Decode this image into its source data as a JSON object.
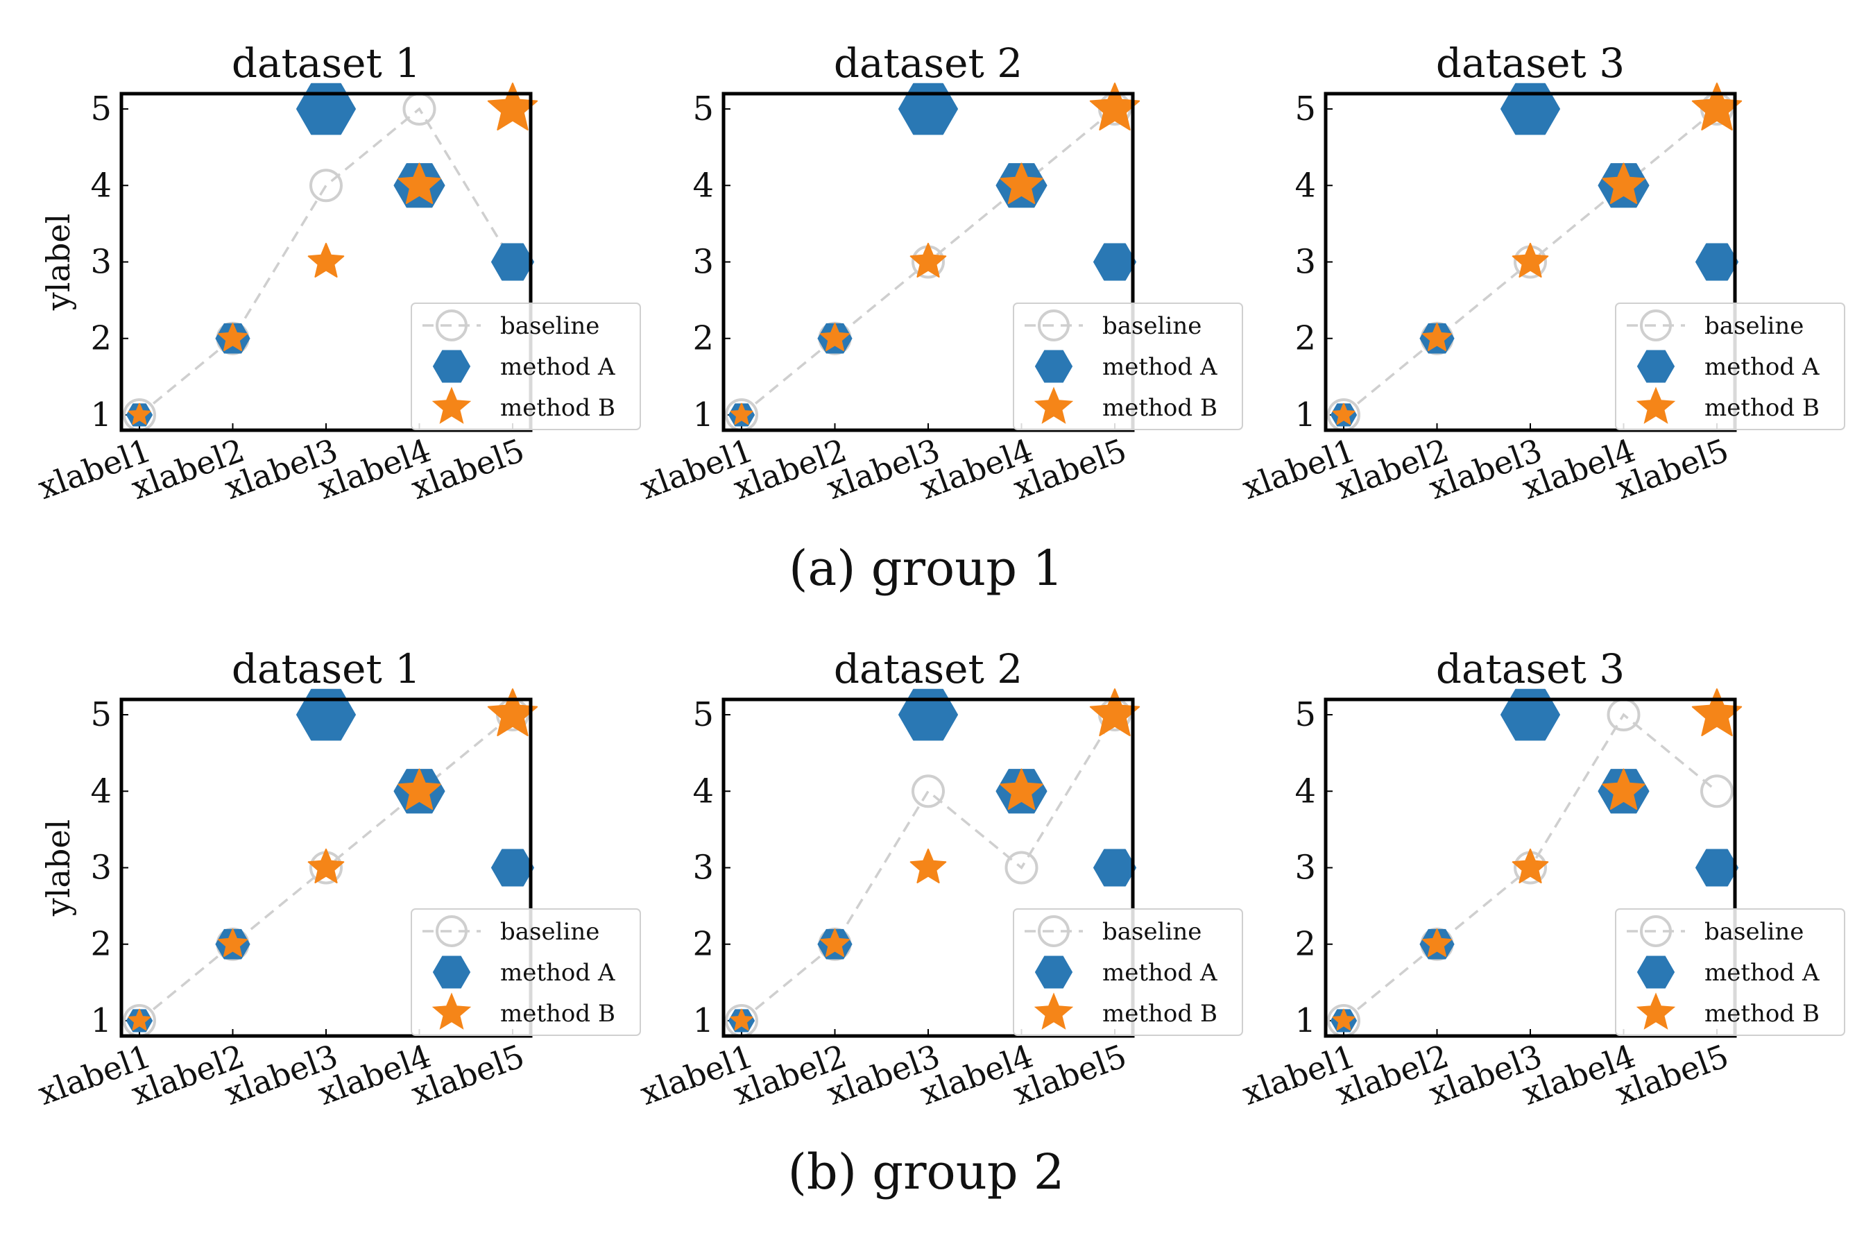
{
  "figure": {
    "groups": [
      {
        "caption": "(a) group 1"
      },
      {
        "caption": "(b) group 2"
      }
    ]
  },
  "colors": {
    "baseline": "#cfcfcf",
    "method_a": "#2a78b4",
    "method_b": "#f58518",
    "axes": "#000000"
  },
  "chart_data": [
    {
      "group": "(a) group 1",
      "title": "dataset 1",
      "type": "scatter",
      "categories": [
        "xlabel1",
        "xlabel2",
        "xlabel3",
        "xlabel4",
        "xlabel5"
      ],
      "xlabel": "",
      "ylabel": "ylabel",
      "ylim": [
        0.8,
        5.2
      ],
      "yticks": [
        1,
        2,
        3,
        4,
        5
      ],
      "grid": false,
      "legend_position": "lower-right",
      "series": [
        {
          "name": "baseline",
          "marker": "open-circle",
          "line": "dashed",
          "values": [
            1,
            2,
            4,
            5,
            3
          ]
        },
        {
          "name": "method A",
          "marker": "hexagon",
          "values": [
            1,
            2,
            5,
            4,
            3
          ]
        },
        {
          "name": "method B",
          "marker": "star",
          "values": [
            1,
            2,
            3,
            4,
            5
          ]
        }
      ]
    },
    {
      "group": "(a) group 1",
      "title": "dataset 2",
      "type": "scatter",
      "categories": [
        "xlabel1",
        "xlabel2",
        "xlabel3",
        "xlabel4",
        "xlabel5"
      ],
      "xlabel": "",
      "ylabel": "",
      "ylim": [
        0.8,
        5.2
      ],
      "yticks": [
        1,
        2,
        3,
        4,
        5
      ],
      "grid": false,
      "legend_position": "lower-right",
      "series": [
        {
          "name": "baseline",
          "marker": "open-circle",
          "line": "dashed",
          "values": [
            1,
            2,
            3,
            4,
            5
          ]
        },
        {
          "name": "method A",
          "marker": "hexagon",
          "values": [
            1,
            2,
            5,
            4,
            3
          ]
        },
        {
          "name": "method B",
          "marker": "star",
          "values": [
            1,
            2,
            3,
            4,
            5
          ]
        }
      ]
    },
    {
      "group": "(a) group 1",
      "title": "dataset 3",
      "type": "scatter",
      "categories": [
        "xlabel1",
        "xlabel2",
        "xlabel3",
        "xlabel4",
        "xlabel5"
      ],
      "xlabel": "",
      "ylabel": "",
      "ylim": [
        0.8,
        5.2
      ],
      "yticks": [
        1,
        2,
        3,
        4,
        5
      ],
      "grid": false,
      "legend_position": "lower-right",
      "series": [
        {
          "name": "baseline",
          "marker": "open-circle",
          "line": "dashed",
          "values": [
            1,
            2,
            3,
            4,
            5
          ]
        },
        {
          "name": "method A",
          "marker": "hexagon",
          "values": [
            1,
            2,
            5,
            4,
            3
          ]
        },
        {
          "name": "method B",
          "marker": "star",
          "values": [
            1,
            2,
            3,
            4,
            5
          ]
        }
      ]
    },
    {
      "group": "(b) group 2",
      "title": "dataset 1",
      "type": "scatter",
      "categories": [
        "xlabel1",
        "xlabel2",
        "xlabel3",
        "xlabel4",
        "xlabel5"
      ],
      "xlabel": "",
      "ylabel": "ylabel",
      "ylim": [
        0.8,
        5.2
      ],
      "yticks": [
        1,
        2,
        3,
        4,
        5
      ],
      "grid": false,
      "legend_position": "lower-right",
      "series": [
        {
          "name": "baseline",
          "marker": "open-circle",
          "line": "dashed",
          "values": [
            1,
            2,
            3,
            4,
            5
          ]
        },
        {
          "name": "method A",
          "marker": "hexagon",
          "values": [
            1,
            2,
            5,
            4,
            3
          ]
        },
        {
          "name": "method B",
          "marker": "star",
          "values": [
            1,
            2,
            3,
            4,
            5
          ]
        }
      ]
    },
    {
      "group": "(b) group 2",
      "title": "dataset 2",
      "type": "scatter",
      "categories": [
        "xlabel1",
        "xlabel2",
        "xlabel3",
        "xlabel4",
        "xlabel5"
      ],
      "xlabel": "",
      "ylabel": "",
      "ylim": [
        0.8,
        5.2
      ],
      "yticks": [
        1,
        2,
        3,
        4,
        5
      ],
      "grid": false,
      "legend_position": "lower-right",
      "series": [
        {
          "name": "baseline",
          "marker": "open-circle",
          "line": "dashed",
          "values": [
            1,
            2,
            4,
            3,
            5
          ]
        },
        {
          "name": "method A",
          "marker": "hexagon",
          "values": [
            1,
            2,
            5,
            4,
            3
          ]
        },
        {
          "name": "method B",
          "marker": "star",
          "values": [
            1,
            2,
            3,
            4,
            5
          ]
        }
      ]
    },
    {
      "group": "(b) group 2",
      "title": "dataset 3",
      "type": "scatter",
      "categories": [
        "xlabel1",
        "xlabel2",
        "xlabel3",
        "xlabel4",
        "xlabel5"
      ],
      "xlabel": "",
      "ylabel": "",
      "ylim": [
        0.8,
        5.2
      ],
      "yticks": [
        1,
        2,
        3,
        4,
        5
      ],
      "grid": false,
      "legend_position": "lower-right",
      "series": [
        {
          "name": "baseline",
          "marker": "open-circle",
          "line": "dashed",
          "values": [
            1,
            2,
            3,
            5,
            4
          ]
        },
        {
          "name": "method A",
          "marker": "hexagon",
          "values": [
            1,
            2,
            5,
            4,
            3
          ]
        },
        {
          "name": "method B",
          "marker": "star",
          "values": [
            1,
            2,
            3,
            4,
            5
          ]
        }
      ]
    }
  ]
}
